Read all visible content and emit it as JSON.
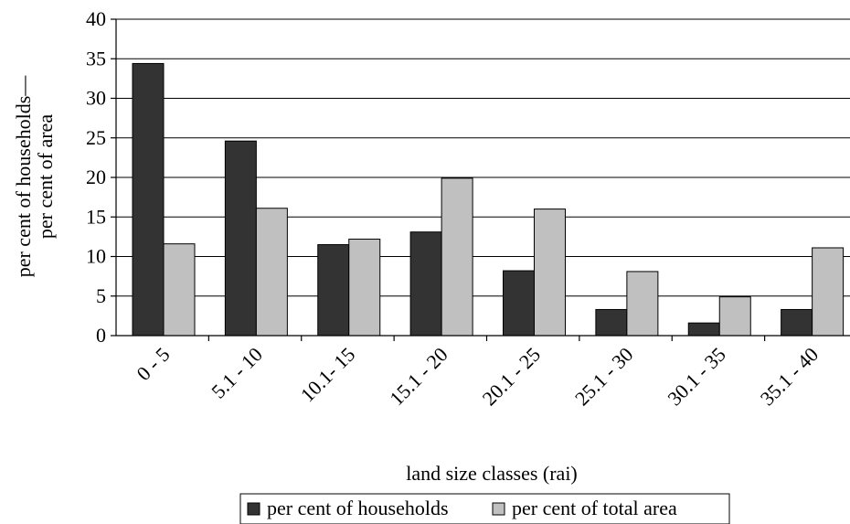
{
  "chart_data": {
    "type": "bar",
    "title": "",
    "xlabel": "land size classes (rai)",
    "ylabel_lines": [
      "per cent of households—",
      "per cent of area"
    ],
    "categories": [
      "0 - 5",
      "5.1 - 10",
      "10.1- 15",
      "15.1 - 20",
      "20.1 - 25",
      "25.1 - 30",
      "30.1 - 35",
      "35.1 - 40"
    ],
    "series": [
      {
        "name": "per cent of households",
        "color": "#333333",
        "values": [
          34.4,
          24.6,
          11.5,
          13.1,
          8.2,
          3.3,
          1.6,
          3.3
        ]
      },
      {
        "name": "per cent of total area",
        "color": "#c0c0c0",
        "values": [
          11.6,
          16.1,
          12.2,
          19.9,
          16.0,
          8.1,
          4.9,
          11.1
        ]
      }
    ],
    "ylim": [
      0,
      40
    ],
    "yticks": [
      0,
      5,
      10,
      15,
      20,
      25,
      30,
      35,
      40
    ],
    "grid": true,
    "legend_position": "bottom-center"
  }
}
